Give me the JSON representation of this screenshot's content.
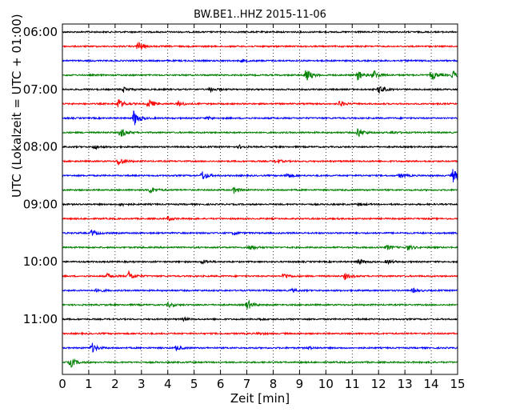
{
  "chart_data": {
    "type": "line",
    "title": "BW.BE1..HHZ 2015-11-06",
    "xlabel": "Zeit  [min]",
    "ylabel": "UTC (Lokalzeit = UTC + 01:00)",
    "xlim": [
      0,
      15
    ],
    "x_ticks": [
      "0",
      "1",
      "2",
      "3",
      "4",
      "5",
      "6",
      "7",
      "8",
      "9",
      "10",
      "11",
      "12",
      "13",
      "14",
      "15"
    ],
    "y_tick_labels": [
      "06:00",
      "07:00",
      "08:00",
      "09:00",
      "10:00",
      "11:00"
    ],
    "trace_colors": [
      "#000000",
      "#ff0000",
      "#0000ff",
      "#008000"
    ],
    "grid": "vertical dotted",
    "traces": [
      {
        "start": "06:00",
        "events": []
      },
      {
        "start": "06:15",
        "events": [
          [
            2.85,
            1.0
          ]
        ]
      },
      {
        "start": "06:30",
        "events": [
          [
            6.8,
            0.2
          ]
        ]
      },
      {
        "start": "06:45",
        "events": [
          [
            9.2,
            1.6
          ],
          [
            11.2,
            1.0
          ],
          [
            11.8,
            1.0
          ],
          [
            14.0,
            1.0
          ],
          [
            14.8,
            0.8
          ]
        ]
      },
      {
        "start": "07:00",
        "events": [
          [
            2.3,
            0.5
          ],
          [
            5.6,
            0.4
          ],
          [
            12.0,
            0.9
          ]
        ]
      },
      {
        "start": "07:15",
        "events": [
          [
            2.1,
            1.0
          ],
          [
            3.25,
            1.0
          ],
          [
            4.4,
            0.5
          ],
          [
            10.5,
            0.6
          ]
        ]
      },
      {
        "start": "07:30",
        "events": [
          [
            2.7,
            1.6
          ],
          [
            5.5,
            0.3
          ]
        ]
      },
      {
        "start": "07:45",
        "events": [
          [
            2.2,
            1.0
          ],
          [
            11.2,
            1.0
          ],
          [
            12.5,
            0.3
          ]
        ]
      },
      {
        "start": "08:00",
        "events": [
          [
            1.2,
            0.4
          ],
          [
            6.7,
            0.3
          ]
        ]
      },
      {
        "start": "08:15",
        "events": [
          [
            2.1,
            1.0
          ],
          [
            8.1,
            0.4
          ]
        ]
      },
      {
        "start": "08:30",
        "events": [
          [
            5.3,
            0.9
          ],
          [
            8.5,
            0.5
          ],
          [
            12.8,
            0.5
          ],
          [
            14.8,
            1.4
          ]
        ]
      },
      {
        "start": "08:45",
        "events": [
          [
            3.3,
            0.7
          ],
          [
            6.5,
            0.6
          ]
        ]
      },
      {
        "start": "09:00",
        "events": [
          [
            2.2,
            0.3
          ],
          [
            11.2,
            0.3
          ]
        ]
      },
      {
        "start": "09:15",
        "events": [
          [
            4.0,
            0.4
          ]
        ]
      },
      {
        "start": "09:30",
        "events": [
          [
            1.1,
            0.6
          ],
          [
            6.5,
            0.3
          ]
        ]
      },
      {
        "start": "09:45",
        "events": [
          [
            7.1,
            0.6
          ],
          [
            12.3,
            0.5
          ],
          [
            13.1,
            0.5
          ]
        ]
      },
      {
        "start": "10:00",
        "events": [
          [
            5.3,
            0.4
          ],
          [
            11.2,
            0.6
          ],
          [
            12.3,
            0.4
          ]
        ]
      },
      {
        "start": "10:15",
        "events": [
          [
            1.7,
            0.5
          ],
          [
            2.5,
            1.0
          ],
          [
            8.4,
            0.6
          ],
          [
            10.7,
            0.6
          ]
        ]
      },
      {
        "start": "10:30",
        "events": [
          [
            1.3,
            0.4
          ],
          [
            8.7,
            0.3
          ],
          [
            13.3,
            0.4
          ]
        ]
      },
      {
        "start": "10:45",
        "events": [
          [
            4.0,
            0.5
          ],
          [
            7.0,
            1.0
          ]
        ]
      },
      {
        "start": "11:00",
        "events": [
          [
            4.6,
            0.3
          ],
          [
            7.4,
            0.3
          ]
        ]
      },
      {
        "start": "11:15",
        "events": [
          [
            7.4,
            0.2
          ]
        ]
      },
      {
        "start": "11:30",
        "events": [
          [
            1.1,
            1.0
          ],
          [
            4.3,
            0.5
          ],
          [
            9.3,
            0.3
          ]
        ]
      },
      {
        "start": "11:45",
        "events": [
          [
            0.3,
            1.0
          ]
        ]
      }
    ]
  }
}
